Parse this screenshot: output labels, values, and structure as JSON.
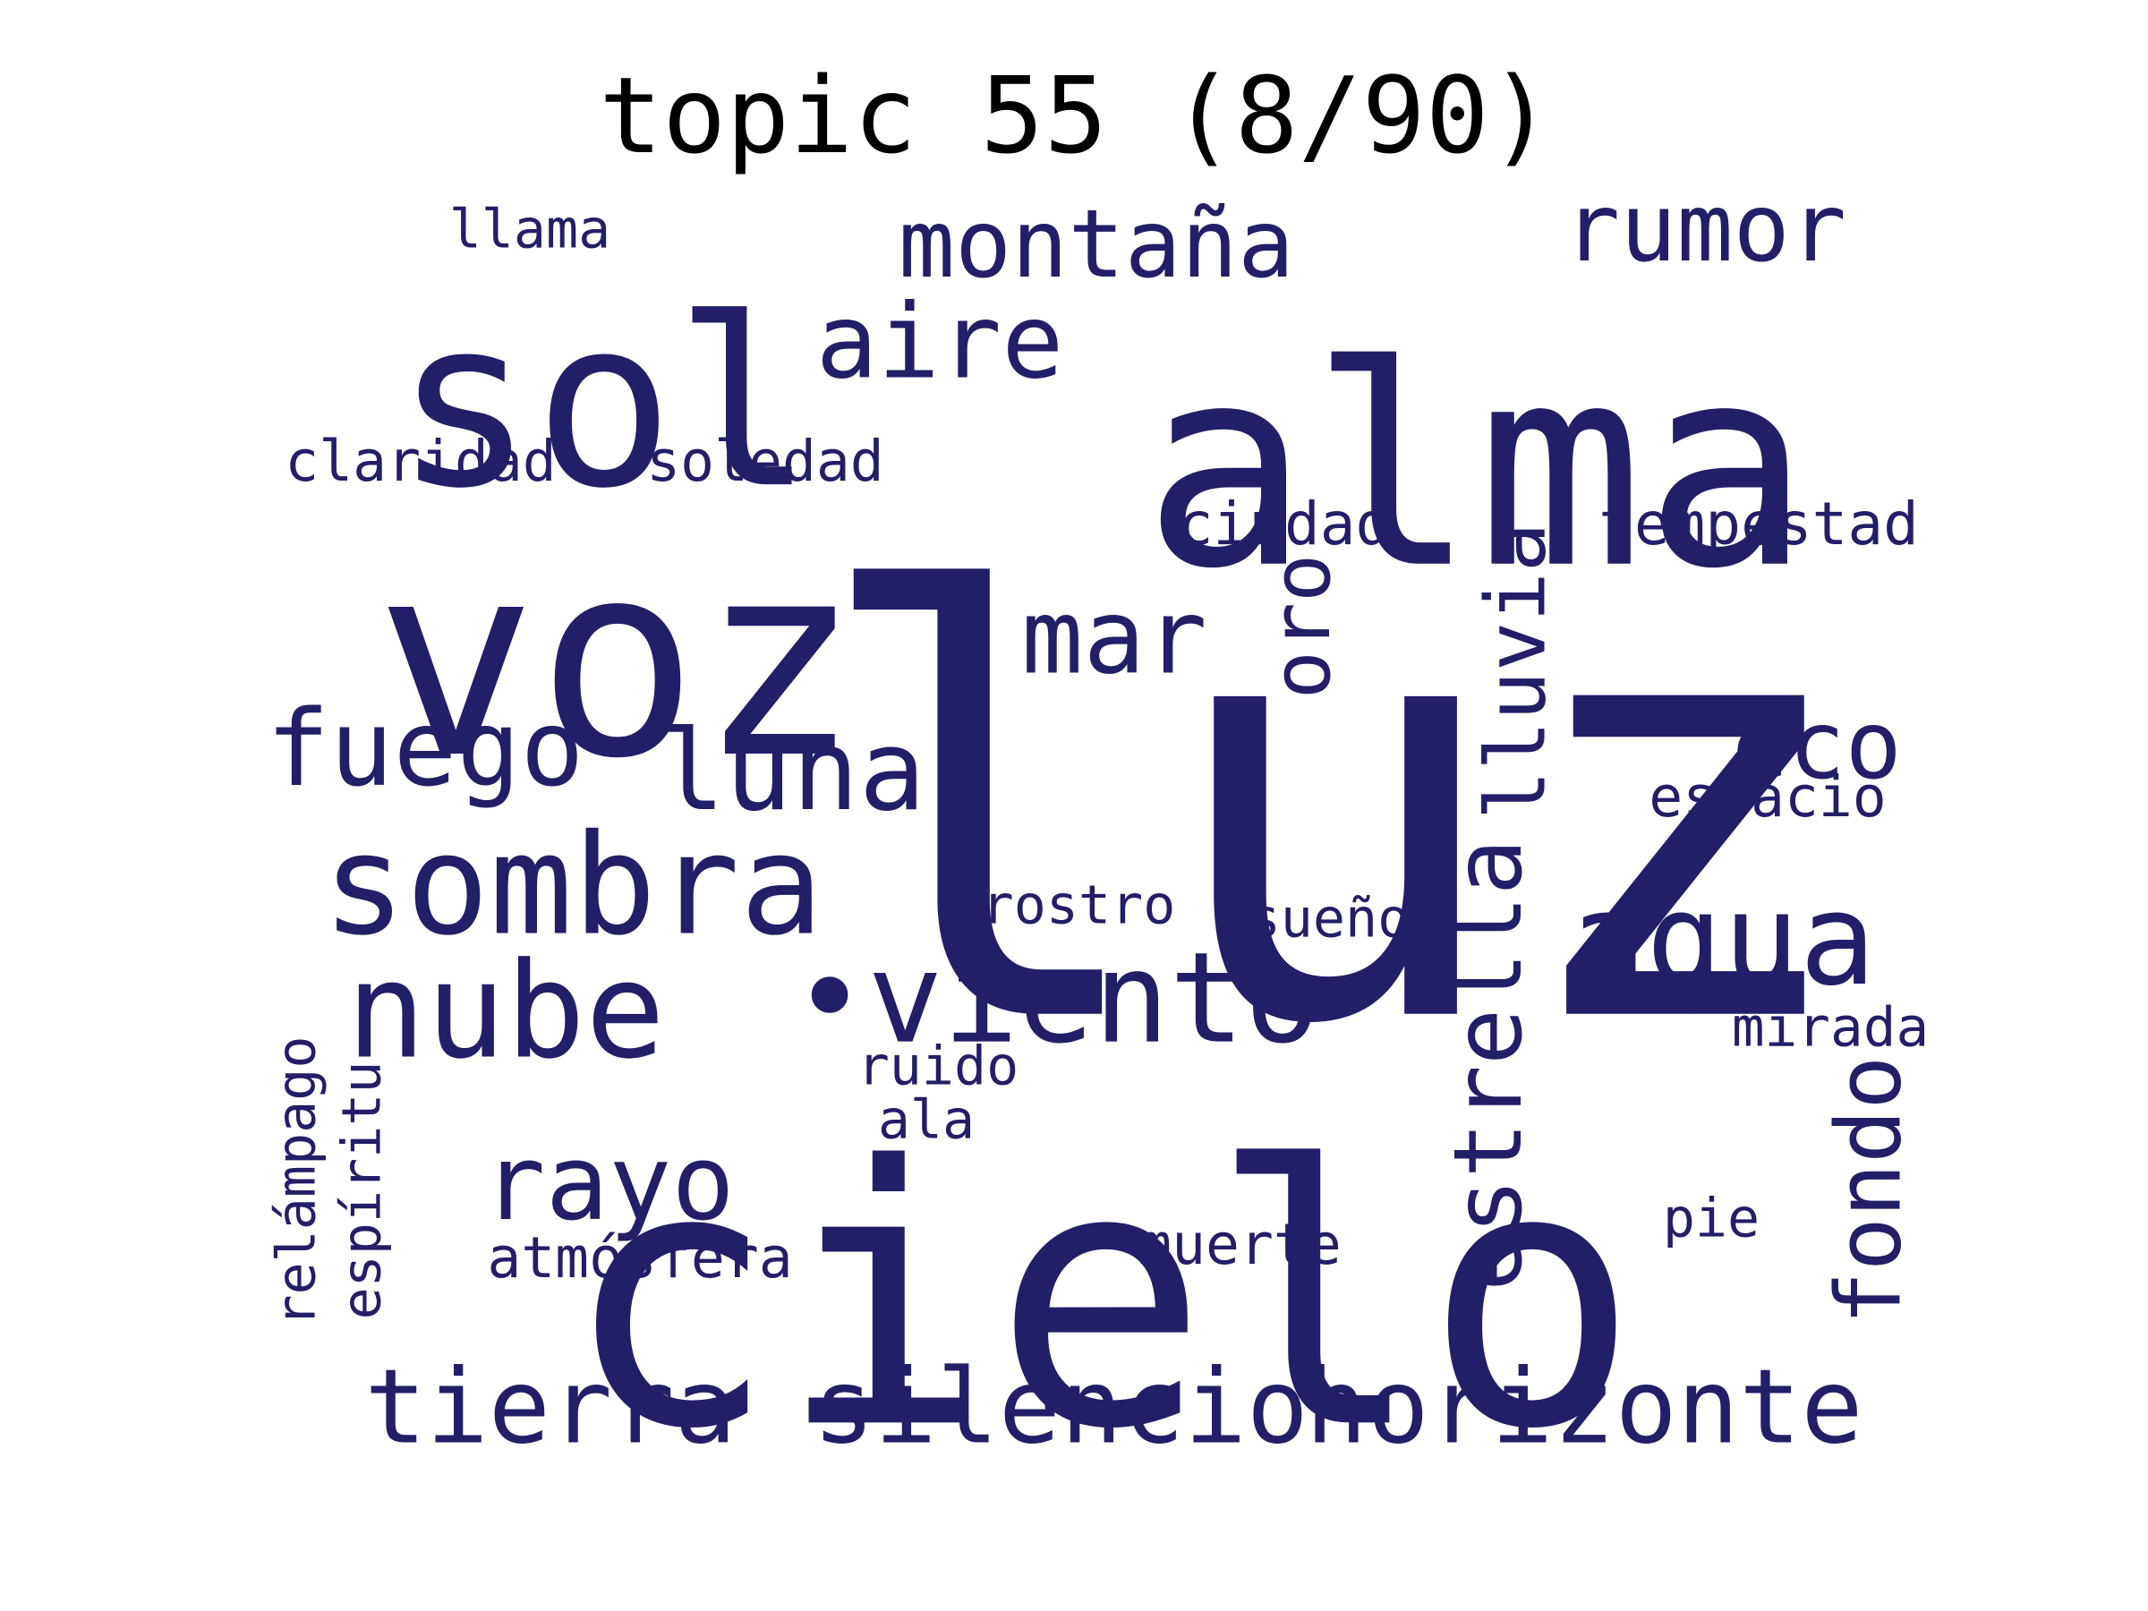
{
  "title": "topic 55 (8/90)",
  "colors": {
    "background": "#ffffff",
    "words": "#221e68",
    "title": "#000000"
  },
  "words": [
    {
      "text": "luz",
      "weight": 1.0
    },
    {
      "text": "cielo",
      "weight": 0.92
    },
    {
      "text": "alma",
      "weight": 0.7
    },
    {
      "text": "voz",
      "weight": 0.68
    },
    {
      "text": "sol",
      "weight": 0.58
    },
    {
      "text": "sombra",
      "weight": 0.36
    },
    {
      "text": "nube",
      "weight": 0.35
    },
    {
      "text": "agua",
      "weight": 0.34
    },
    {
      "text": "•viento",
      "weight": 0.33
    },
    {
      "text": "luna",
      "weight": 0.3
    },
    {
      "text": "fuego",
      "weight": 0.28
    },
    {
      "text": "rayo",
      "weight": 0.27
    },
    {
      "text": "mar",
      "weight": 0.27
    },
    {
      "text": "silencio",
      "weight": 0.27
    },
    {
      "text": "horizonte",
      "weight": 0.27
    },
    {
      "text": "tierra",
      "weight": 0.27
    },
    {
      "text": "aire",
      "weight": 0.27
    },
    {
      "text": "estrella",
      "weight": 0.26
    },
    {
      "text": "fondo",
      "weight": 0.25
    },
    {
      "text": "eco",
      "weight": 0.25
    },
    {
      "text": "montaña",
      "weight": 0.25
    },
    {
      "text": "rumor",
      "weight": 0.25
    },
    {
      "text": "lluvia",
      "weight": 0.24
    },
    {
      "text": "oro",
      "weight": 0.23
    },
    {
      "text": "tempestad",
      "weight": 0.15
    },
    {
      "text": "ciudad",
      "weight": 0.15
    },
    {
      "text": "claridad",
      "weight": 0.14
    },
    {
      "text": "soledad",
      "weight": 0.14
    },
    {
      "text": "muerte",
      "weight": 0.14
    },
    {
      "text": "atmósfera",
      "weight": 0.14
    },
    {
      "text": "espacio",
      "weight": 0.14
    },
    {
      "text": "mirada",
      "weight": 0.14
    },
    {
      "text": "llama",
      "weight": 0.13
    },
    {
      "text": "rostro",
      "weight": 0.13
    },
    {
      "text": "sueño",
      "weight": 0.13
    },
    {
      "text": "ruido",
      "weight": 0.13
    },
    {
      "text": "ala",
      "weight": 0.13
    },
    {
      "text": "pie",
      "weight": 0.13
    },
    {
      "text": "relámpago",
      "weight": 0.13
    },
    {
      "text": "espíritu",
      "weight": 0.13
    }
  ]
}
